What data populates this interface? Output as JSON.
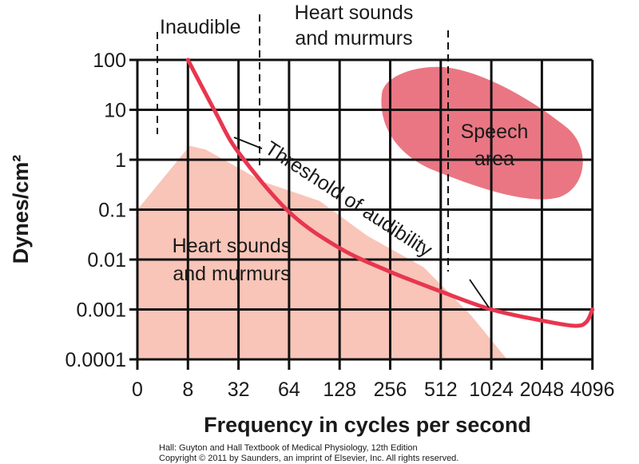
{
  "chart_data": {
    "type": "line",
    "xlabel": "Frequency in cycles per second",
    "ylabel": "Dynes/cm²",
    "x_ticks": [
      "0",
      "8",
      "32",
      "64",
      "128",
      "256",
      "512",
      "1024",
      "2048",
      "4096"
    ],
    "y_ticks": [
      "100",
      "10",
      "1",
      "0.1",
      "0.01",
      "0.001",
      "0.0001"
    ],
    "y_scale": "log",
    "ylim": [
      0.0001,
      100
    ],
    "grid": true,
    "series": [
      {
        "name": "Threshold of audibility",
        "color": "#e8364f",
        "points": [
          [
            8,
            100
          ],
          [
            17,
            9
          ],
          [
            32,
            1.4
          ],
          [
            64,
            0.09
          ],
          [
            128,
            0.017
          ],
          [
            256,
            0.0057
          ],
          [
            512,
            0.0023
          ],
          [
            1024,
            0.001
          ],
          [
            2048,
            0.0006
          ],
          [
            3240,
            0.00047
          ],
          [
            3780,
            0.00057
          ],
          [
            4096,
            0.001
          ]
        ]
      }
    ],
    "regions": [
      {
        "name": "Heart sounds and murmurs",
        "color": "#f8c5b8",
        "points": [
          [
            0,
            0.1
          ],
          [
            8.4,
            1.9
          ],
          [
            13,
            1.6
          ],
          [
            45,
            0.36
          ],
          [
            97,
            0.15
          ],
          [
            187,
            0.03
          ],
          [
            406,
            0.007
          ],
          [
            776,
            0.00076
          ],
          [
            1270,
            0.0001
          ]
        ]
      },
      {
        "name": "Speech area",
        "color": "#ea7683"
      }
    ],
    "annotations": {
      "inaudible": "Inaudible",
      "heart_top_line1": "Heart sounds",
      "heart_top_line2": "and murmurs",
      "heart_inner_line1": "Heart sounds",
      "heart_inner_line2": "and murmurs",
      "speech_line1": "Speech",
      "speech_line2": "area",
      "threshold": "Threshold of audibility"
    }
  },
  "caption": {
    "line1": "Hall: Guyton and Hall Textbook of Medical Physiology, 12th Edition",
    "line2": "Copyright © 2011 by Saunders, an imprint of Elsevier, Inc. All rights reserved."
  }
}
